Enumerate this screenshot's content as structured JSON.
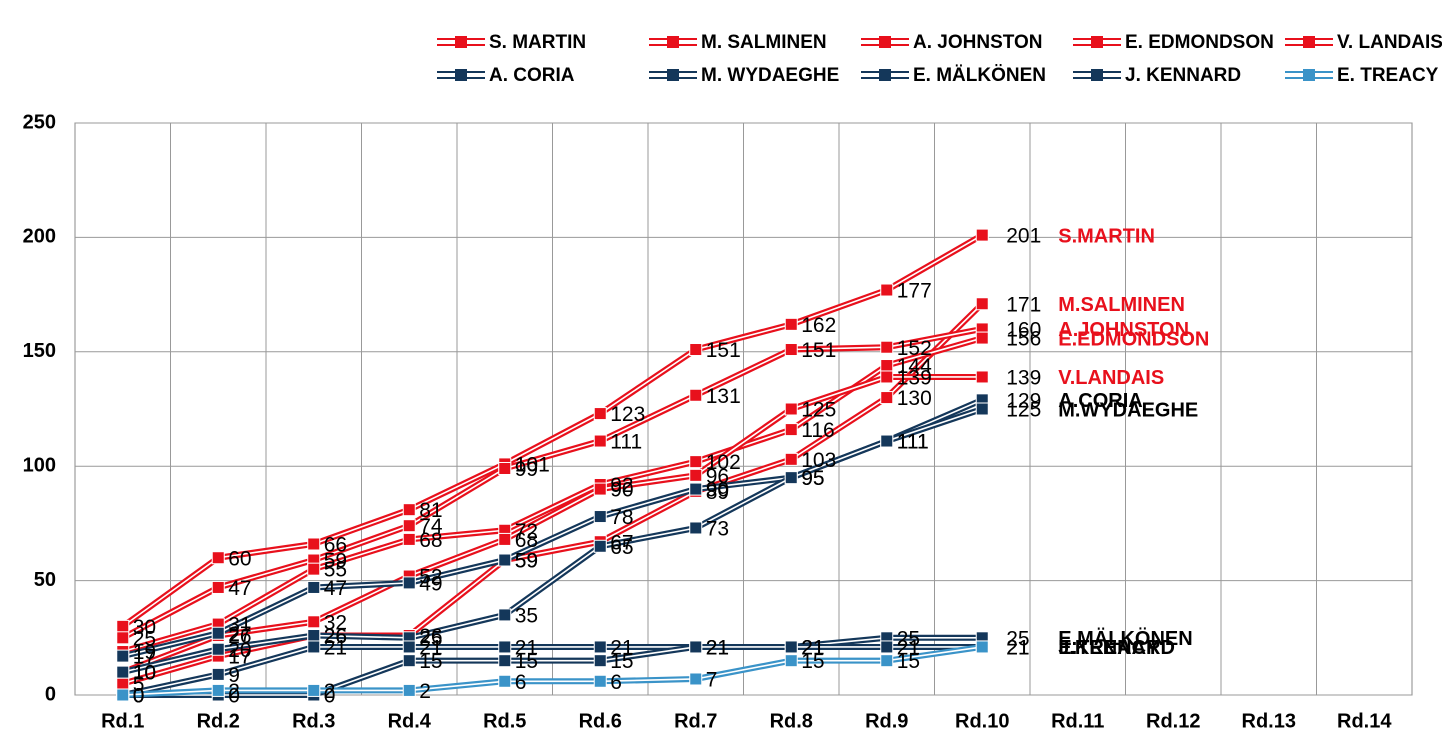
{
  "chart_data": {
    "type": "line",
    "categories": [
      "Rd.1",
      "Rd.2",
      "Rd.3",
      "Rd.4",
      "Rd.5",
      "Rd.6",
      "Rd.7",
      "Rd.8",
      "Rd.9",
      "Rd.10",
      "Rd.11",
      "Rd.12",
      "Rd.13",
      "Rd.14"
    ],
    "ylim": [
      0,
      250
    ],
    "yticks": [
      0,
      50,
      100,
      150,
      200,
      250
    ],
    "grid": true,
    "legend": "top",
    "series": [
      {
        "name": "S. MARTIN",
        "end_label": "S.MARTIN",
        "color": "#e8101c",
        "values": [
          30,
          60,
          66,
          81,
          101,
          123,
          151,
          162,
          177,
          201,
          null,
          null,
          null,
          null
        ]
      },
      {
        "name": "M. SALMINEN",
        "end_label": "M.SALMINEN",
        "color": "#e8101c",
        "values": [
          5,
          17,
          26,
          26,
          59,
          67,
          89,
          103,
          130,
          171,
          null,
          null,
          null,
          null
        ]
      },
      {
        "name": "A. JOHNSTON",
        "end_label": "A.JOHNSTON",
        "color": "#e8101c",
        "values": [
          25,
          47,
          59,
          74,
          99,
          111,
          131,
          151,
          152,
          160,
          null,
          null,
          null,
          null
        ]
      },
      {
        "name": "E. EDMONDSON",
        "end_label": "E.EDMONDSON",
        "color": "#e8101c",
        "values": [
          19,
          31,
          55,
          68,
          72,
          92,
          102,
          116,
          144,
          156,
          null,
          null,
          null,
          null
        ]
      },
      {
        "name": "V. LANDAIS",
        "end_label": "V.LANDAIS",
        "color": "#e8101c",
        "values": [
          10,
          26,
          32,
          52,
          68,
          90,
          96,
          125,
          139,
          139,
          null,
          null,
          null,
          null
        ]
      },
      {
        "name": "A. CORIA",
        "end_label": "A.CORIA",
        "color": "#14375a",
        "values": [
          17,
          27,
          47,
          49,
          59,
          78,
          90,
          95,
          111,
          129,
          null,
          null,
          null,
          null
        ]
      },
      {
        "name": "M. WYDAEGHE",
        "end_label": "M.WYDAEGHE",
        "color": "#14375a",
        "values": [
          10,
          20,
          26,
          25,
          35,
          65,
          73,
          95,
          111,
          125,
          null,
          null,
          null,
          null
        ]
      },
      {
        "name": "E. MÄLKÖNEN",
        "end_label": "E.MÄLKÖNEN",
        "color": "#14375a",
        "values": [
          0,
          9,
          21,
          21,
          21,
          21,
          21,
          21,
          25,
          25,
          null,
          null,
          null,
          null
        ]
      },
      {
        "name": "J. KENNARD",
        "end_label": "J.KENNARD",
        "color": "#14375a",
        "values": [
          0,
          0,
          0,
          15,
          15,
          15,
          21,
          21,
          21,
          21,
          null,
          null,
          null,
          null
        ]
      },
      {
        "name": "E. TREACY",
        "end_label": "E.TREACY",
        "color": "#3a93c8",
        "values": [
          0,
          2,
          2,
          2,
          6,
          6,
          7,
          15,
          15,
          21,
          null,
          null,
          null,
          null
        ]
      }
    ]
  }
}
